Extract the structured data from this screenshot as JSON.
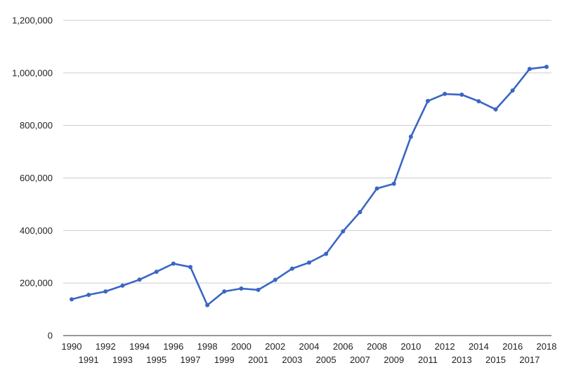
{
  "chart_data": {
    "type": "line",
    "title": "",
    "xlabel": "",
    "ylabel": "",
    "x": [
      "1990",
      "1991",
      "1992",
      "1993",
      "1994",
      "1995",
      "1996",
      "1997",
      "1998",
      "1999",
      "2000",
      "2001",
      "2002",
      "2003",
      "2004",
      "2005",
      "2006",
      "2007",
      "2008",
      "2009",
      "2010",
      "2011",
      "2012",
      "2013",
      "2014",
      "2015",
      "2016",
      "2017",
      "2018"
    ],
    "series": [
      {
        "values": [
          138000,
          155000,
          168000,
          190000,
          213000,
          243000,
          274000,
          261000,
          116000,
          168000,
          179000,
          174000,
          212000,
          255000,
          278000,
          311000,
          397000,
          470000,
          560000,
          578000,
          757000,
          893000,
          920000,
          917000,
          892000,
          861000,
          933000,
          1015000,
          1023000
        ]
      }
    ],
    "ylim": [
      0,
      1200000
    ],
    "y_ticks": [
      0,
      200000,
      400000,
      600000,
      800000,
      1000000,
      1200000
    ],
    "y_tick_labels": [
      "0",
      "200,000",
      "400,000",
      "600,000",
      "800,000",
      "1,000,000",
      "1,200,000"
    ],
    "grid": true,
    "legend": "none",
    "colors": {
      "line": "#3a66c4",
      "grid": "#cccccc",
      "axis": "#333333",
      "text": "#222222"
    }
  }
}
